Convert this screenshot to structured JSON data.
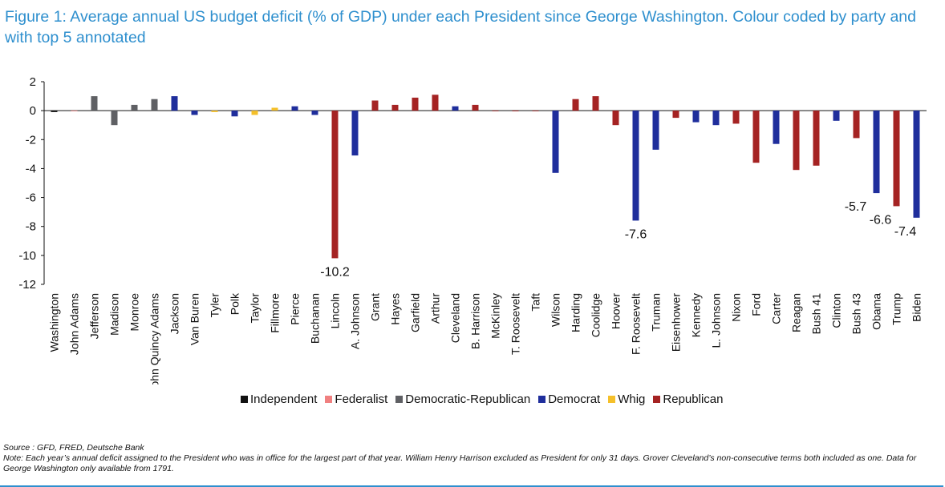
{
  "title": "Figure 1: Average annual US budget deficit (% of GDP) under each President since George Washington. Colour coded by party and with top 5 annotated",
  "source": "Source : GFD, FRED, Deutsche Bank",
  "note": "Note: Each year’s annual deficit assigned to the President who was in office for the largest part of that year. William Henry Harrison excluded as President for only 31 days. Grover Cleveland’s non-consecutive terms both included as one. Data for George Washington only available from 1791.",
  "party_colors": {
    "Independent": "#111111",
    "Federalist": "#f08080",
    "Democratic-Republican": "#5f6064",
    "Democrat": "#1f2e9c",
    "Whig": "#f5c02a",
    "Republican": "#a52323"
  },
  "chart_data": {
    "type": "bar",
    "title": "Average annual US budget deficit (% of GDP) under each President",
    "xlabel": "",
    "ylabel": "",
    "ylim": [
      -12,
      2
    ],
    "yticks": [
      2,
      0,
      -2,
      -4,
      -6,
      -8,
      -10,
      -12
    ],
    "grid": false,
    "legend": [
      "Independent",
      "Federalist",
      "Democratic-Republican",
      "Democrat",
      "Whig",
      "Republican"
    ],
    "categories": [
      "Washington",
      "John Adams",
      "Jefferson",
      "Madison",
      "Monroe",
      "John Quincy Adams",
      "Jackson",
      "Van Buren",
      "Tyler",
      "Polk",
      "Taylor",
      "Fillmore",
      "Pierce",
      "Buchanan",
      "Lincoln",
      "A. Johnson",
      "Grant",
      "Hayes",
      "Garfield",
      "Arthur",
      "Cleveland",
      "B. Harrison",
      "McKinley",
      "T. Roosevelt",
      "Taft",
      "Wilson",
      "Harding",
      "Coolidge",
      "Hoover",
      "F. Roosevelt",
      "Truman",
      "Eisenhower",
      "Kennedy",
      "L. Johnson",
      "Nixon",
      "Ford",
      "Carter",
      "Reagan",
      "Bush 41",
      "Clinton",
      "Bush 43",
      "Obama",
      "Trump",
      "Biden"
    ],
    "parties": [
      "Independent",
      "Federalist",
      "Democratic-Republican",
      "Democratic-Republican",
      "Democratic-Republican",
      "Democratic-Republican",
      "Democrat",
      "Democrat",
      "Whig",
      "Democrat",
      "Whig",
      "Whig",
      "Democrat",
      "Democrat",
      "Republican",
      "Democrat",
      "Republican",
      "Republican",
      "Republican",
      "Republican",
      "Democrat",
      "Republican",
      "Republican",
      "Republican",
      "Republican",
      "Democrat",
      "Republican",
      "Republican",
      "Republican",
      "Democrat",
      "Democrat",
      "Republican",
      "Democrat",
      "Democrat",
      "Republican",
      "Republican",
      "Democrat",
      "Republican",
      "Republican",
      "Democrat",
      "Republican",
      "Democrat",
      "Republican",
      "Democrat"
    ],
    "values": [
      -0.1,
      0.0,
      1.0,
      -1.0,
      0.4,
      0.8,
      1.0,
      -0.3,
      -0.1,
      -0.4,
      -0.3,
      0.2,
      0.3,
      -0.3,
      -10.2,
      -3.1,
      0.7,
      0.4,
      0.9,
      1.1,
      0.3,
      0.4,
      0.0,
      -0.05,
      0.0,
      -4.3,
      0.8,
      1.0,
      -1.0,
      -7.6,
      -2.7,
      -0.5,
      -0.8,
      -1.0,
      -0.9,
      -3.6,
      -2.3,
      -4.1,
      -3.8,
      -0.7,
      -1.9,
      -5.7,
      -6.6,
      -7.4
    ],
    "annotations": [
      {
        "category": "Lincoln",
        "label": "-10.2"
      },
      {
        "category": "F. Roosevelt",
        "label": "-7.6"
      },
      {
        "category": "Obama",
        "label": "-5.7"
      },
      {
        "category": "Trump",
        "label": "-6.6"
      },
      {
        "category": "Biden",
        "label": "-7.4"
      }
    ]
  }
}
